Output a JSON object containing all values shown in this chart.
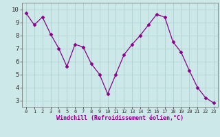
{
  "x": [
    0,
    1,
    2,
    3,
    4,
    5,
    6,
    7,
    8,
    9,
    10,
    11,
    12,
    13,
    14,
    15,
    16,
    17,
    18,
    19,
    20,
    21,
    22,
    23
  ],
  "y": [
    9.7,
    8.8,
    9.4,
    8.1,
    7.0,
    5.6,
    7.3,
    7.1,
    5.8,
    5.0,
    3.5,
    5.0,
    6.5,
    7.3,
    8.0,
    8.8,
    9.6,
    9.4,
    7.5,
    6.7,
    5.3,
    4.0,
    3.2,
    2.8
  ],
  "line_color": "#880088",
  "marker": "D",
  "marker_size": 2.5,
  "bg_color": "#cce8e8",
  "grid_color": "#aacccc",
  "xlabel": "Windchill (Refroidissement éolien,°C)",
  "xlim": [
    -0.5,
    23.5
  ],
  "ylim": [
    2.5,
    10.5
  ],
  "yticks": [
    3,
    4,
    5,
    6,
    7,
    8,
    9,
    10
  ],
  "xticks": [
    0,
    1,
    2,
    3,
    4,
    5,
    6,
    7,
    8,
    9,
    10,
    11,
    12,
    13,
    14,
    15,
    16,
    17,
    18,
    19,
    20,
    21,
    22,
    23
  ]
}
